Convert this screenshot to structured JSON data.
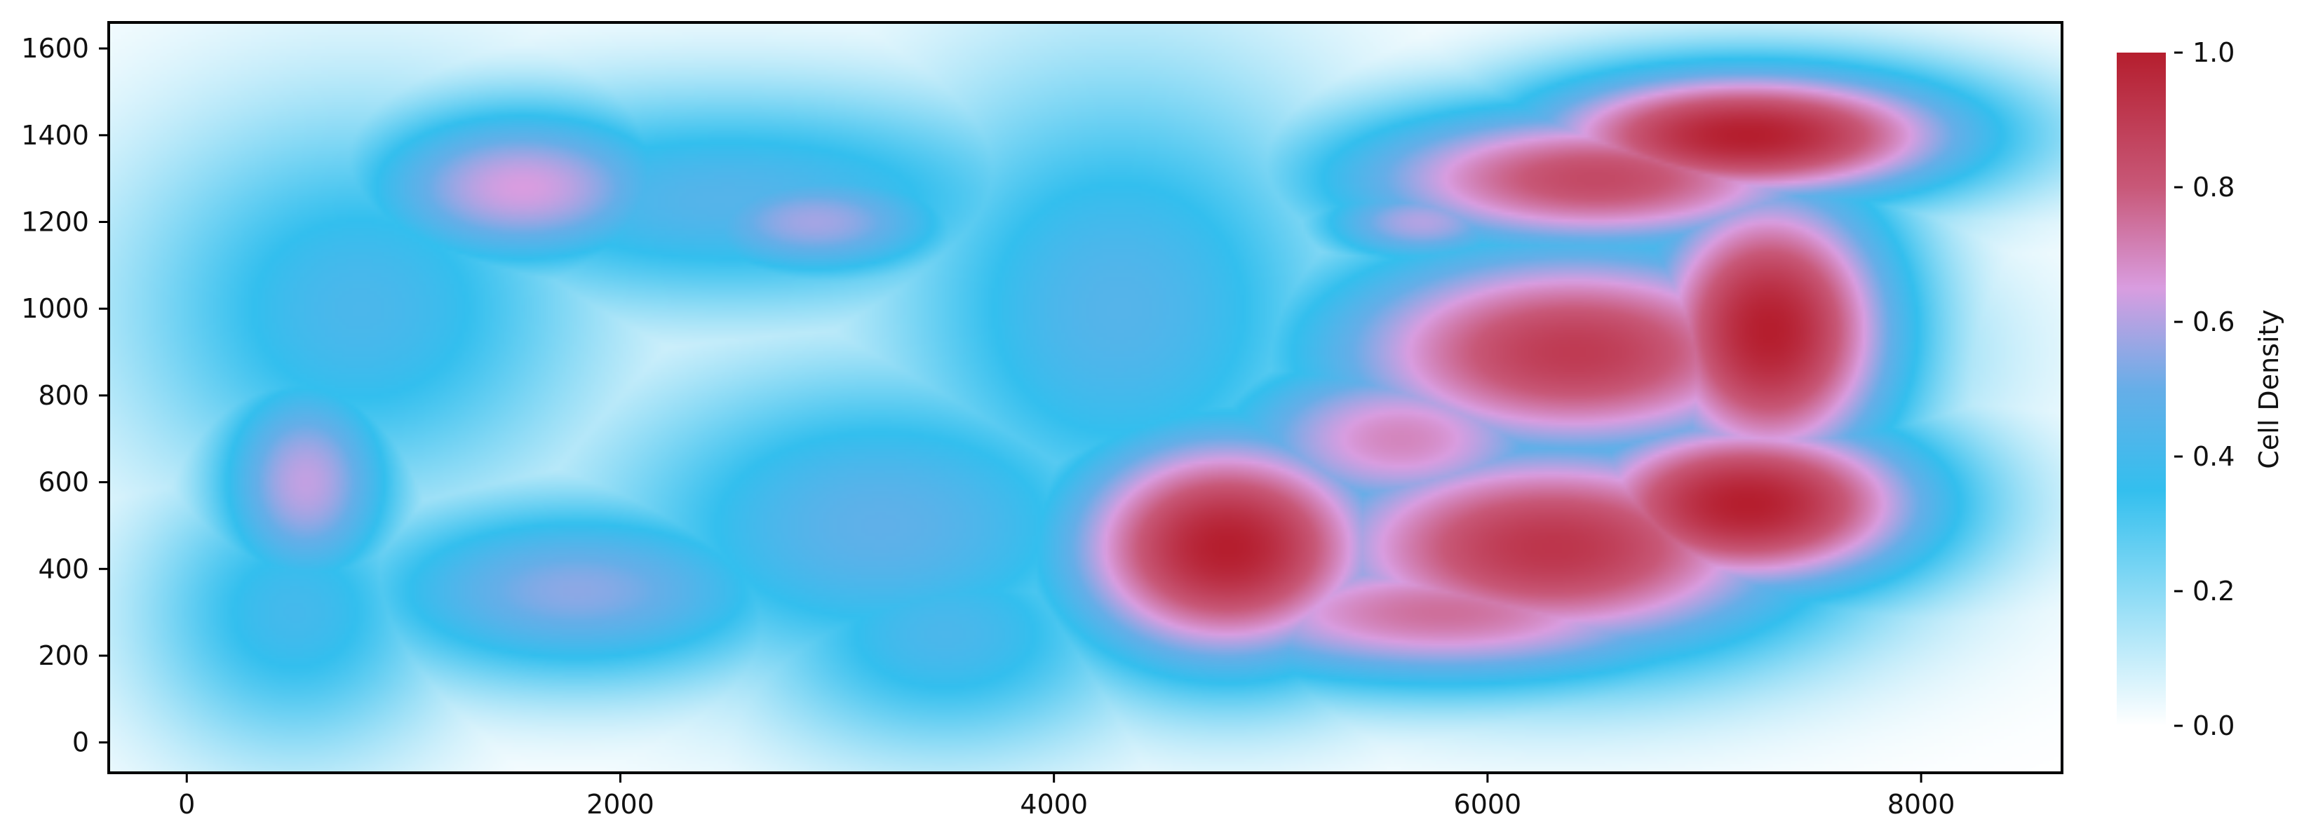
{
  "chart_data": {
    "type": "heatmap",
    "title": "",
    "xlabel": "",
    "ylabel": "",
    "xlim": [
      -360,
      8650
    ],
    "ylim": [
      -70,
      1660
    ],
    "x_ticks": [
      0,
      2000,
      4000,
      6000,
      8000
    ],
    "y_ticks": [
      0,
      200,
      400,
      600,
      800,
      1000,
      1200,
      1400,
      1600
    ],
    "colorbar": {
      "label": "Cell Density",
      "range": [
        0,
        1
      ],
      "ticks": [
        "0.0",
        "0.2",
        "0.4",
        "0.6",
        "0.8",
        "1.0"
      ],
      "colors": [
        {
          "stop": 0.0,
          "color": "#ffffff"
        },
        {
          "stop": 0.35,
          "color": "#33bfee"
        },
        {
          "stop": 0.5,
          "color": "#66aee8"
        },
        {
          "stop": 0.65,
          "color": "#d99de0"
        },
        {
          "stop": 0.8,
          "color": "#c85878"
        },
        {
          "stop": 1.0,
          "color": "#b51e2e"
        }
      ]
    },
    "density_peaks": [
      {
        "x": 7200,
        "y": 1400,
        "value": 1.0,
        "sx": 600,
        "sy": 90
      },
      {
        "x": 6500,
        "y": 1300,
        "value": 0.85,
        "sx": 700,
        "sy": 100
      },
      {
        "x": 5700,
        "y": 1200,
        "value": 0.6,
        "sx": 300,
        "sy": 60
      },
      {
        "x": 7300,
        "y": 950,
        "value": 1.0,
        "sx": 350,
        "sy": 200
      },
      {
        "x": 6400,
        "y": 900,
        "value": 0.9,
        "sx": 700,
        "sy": 150
      },
      {
        "x": 5600,
        "y": 700,
        "value": 0.7,
        "sx": 500,
        "sy": 120
      },
      {
        "x": 7200,
        "y": 550,
        "value": 1.0,
        "sx": 500,
        "sy": 120
      },
      {
        "x": 6300,
        "y": 450,
        "value": 0.92,
        "sx": 700,
        "sy": 150
      },
      {
        "x": 4800,
        "y": 450,
        "value": 1.0,
        "sx": 450,
        "sy": 160
      },
      {
        "x": 5800,
        "y": 300,
        "value": 0.75,
        "sx": 800,
        "sy": 100
      },
      {
        "x": 1550,
        "y": 1280,
        "value": 0.65,
        "sx": 450,
        "sy": 110
      },
      {
        "x": 2900,
        "y": 1200,
        "value": 0.58,
        "sx": 400,
        "sy": 80
      },
      {
        "x": 550,
        "y": 600,
        "value": 0.62,
        "sx": 250,
        "sy": 150
      },
      {
        "x": 1800,
        "y": 350,
        "value": 0.55,
        "sx": 600,
        "sy": 120
      },
      {
        "x": 3200,
        "y": 500,
        "value": 0.48,
        "sx": 700,
        "sy": 200
      },
      {
        "x": 2500,
        "y": 1250,
        "value": 0.45,
        "sx": 900,
        "sy": 140
      },
      {
        "x": 800,
        "y": 1000,
        "value": 0.42,
        "sx": 600,
        "sy": 250
      },
      {
        "x": 4300,
        "y": 1000,
        "value": 0.45,
        "sx": 600,
        "sy": 300
      },
      {
        "x": 3500,
        "y": 250,
        "value": 0.42,
        "sx": 500,
        "sy": 150
      },
      {
        "x": 500,
        "y": 300,
        "value": 0.4,
        "sx": 400,
        "sy": 180
      }
    ]
  }
}
